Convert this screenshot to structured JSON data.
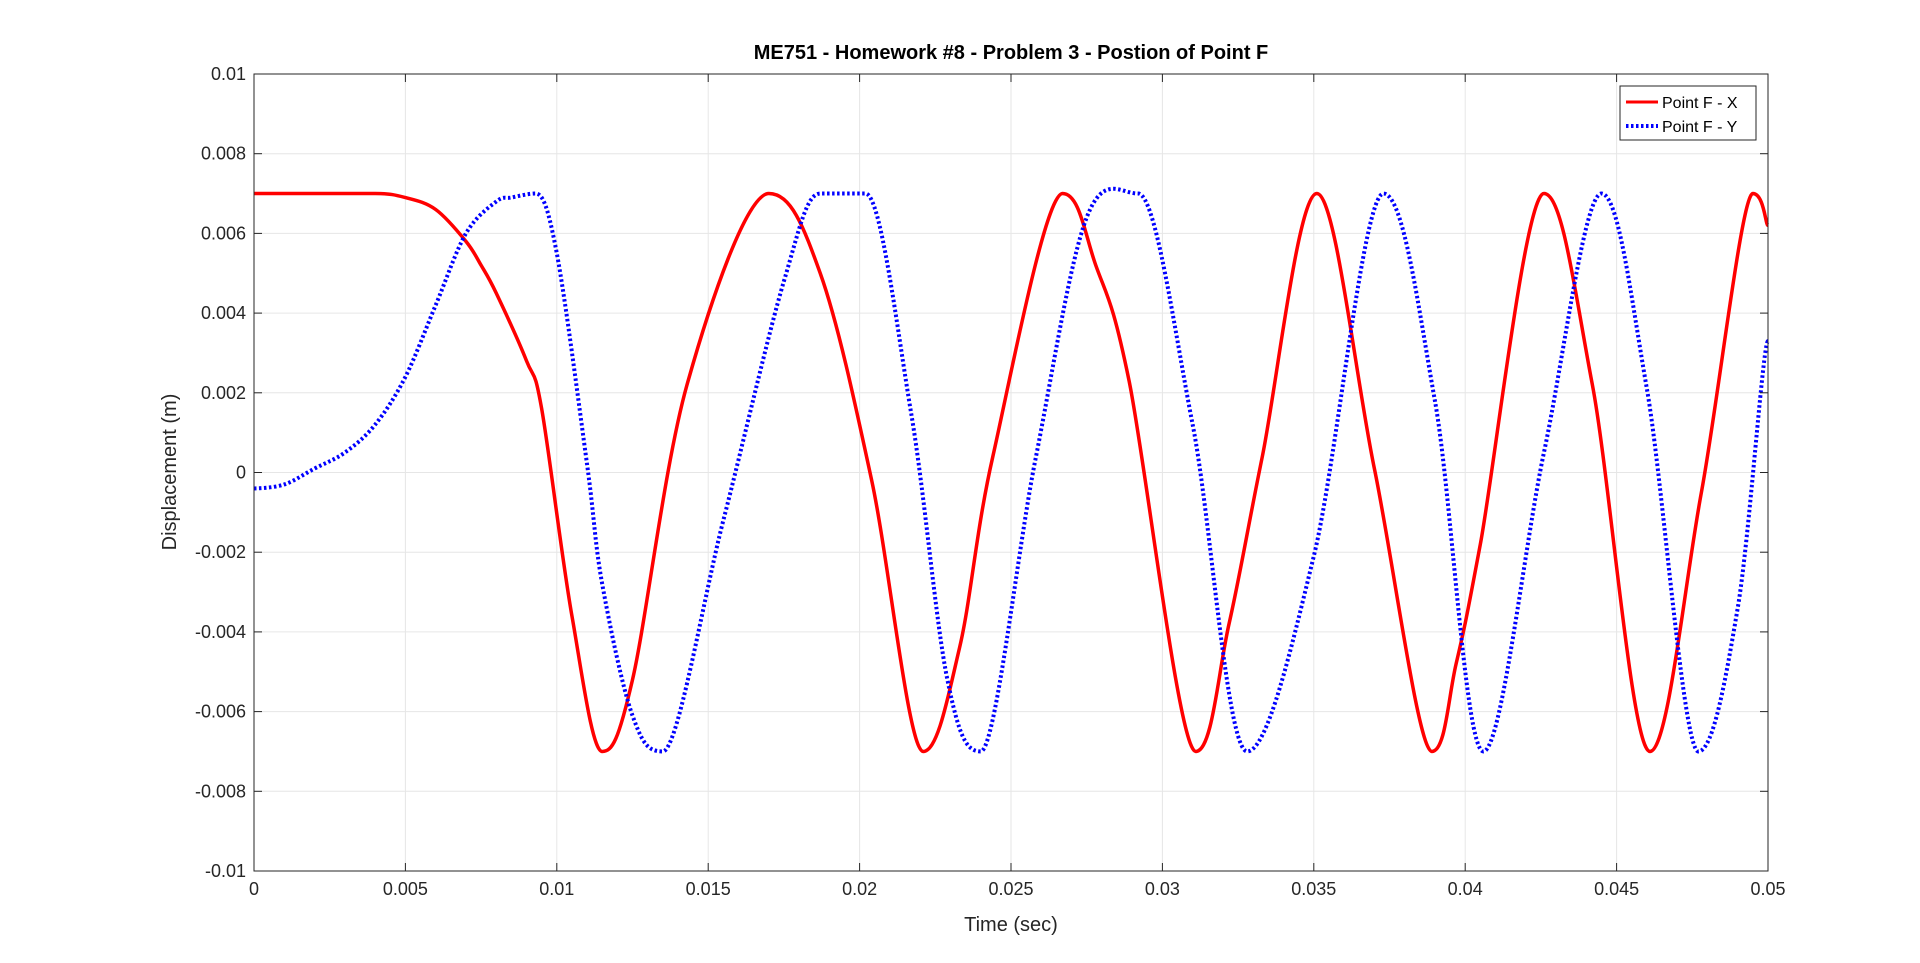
{
  "chart_data": {
    "type": "line",
    "title": "ME751 - Homework #8 - Problem 3 - Postion of Point F",
    "xlabel": "Time (sec)",
    "ylabel": "Displacement (m)",
    "xlim": [
      0,
      0.05
    ],
    "ylim": [
      -0.01,
      0.01
    ],
    "xticks": [
      0,
      0.005,
      0.01,
      0.015,
      0.02,
      0.025,
      0.03,
      0.035,
      0.04,
      0.045,
      0.05
    ],
    "xtick_labels": [
      "0",
      "0.005",
      "0.01",
      "0.015",
      "0.02",
      "0.025",
      "0.03",
      "0.035",
      "0.04",
      "0.045",
      "0.05"
    ],
    "yticks": [
      -0.01,
      -0.008,
      -0.006,
      -0.004,
      -0.002,
      0,
      0.002,
      0.004,
      0.006,
      0.008,
      0.01
    ],
    "ytick_labels": [
      "-0.01",
      "-0.008",
      "-0.006",
      "-0.004",
      "-0.002",
      "0",
      "0.002",
      "0.004",
      "0.006",
      "0.008",
      "0.01"
    ],
    "grid": true,
    "legend_position": "top-right",
    "series": [
      {
        "name": "Point F - X",
        "color": "#ff0000",
        "style": "solid",
        "x": [
          0,
          0.002,
          0.004,
          0.005,
          0.006,
          0.007,
          0.0075,
          0.008,
          0.009,
          0.0095,
          0.0105,
          0.0115,
          0.0125,
          0.0143,
          0.017,
          0.0187,
          0.0204,
          0.0221,
          0.0233,
          0.0244,
          0.0267,
          0.0278,
          0.0289,
          0.0311,
          0.0322,
          0.0333,
          0.0351,
          0.037,
          0.0389,
          0.0397,
          0.0405,
          0.0426,
          0.0442,
          0.0461,
          0.0478,
          0.0495,
          0.05
        ],
        "y": [
          0.007,
          0.007,
          0.007,
          0.0069,
          0.0066,
          0.0058,
          0.0052,
          0.0045,
          0.0028,
          0.0016,
          -0.0036,
          -0.007,
          -0.0052,
          0.0022,
          0.007,
          0.005,
          -0.0002,
          -0.007,
          -0.0044,
          0.0004,
          0.007,
          0.0052,
          0.0023,
          -0.007,
          -0.0038,
          0.0004,
          0.007,
          0.0001,
          -0.007,
          -0.0048,
          -0.0018,
          0.007,
          0.0022,
          -0.007,
          -0.0005,
          0.007,
          0.0062
        ]
      },
      {
        "name": "Point F - Y",
        "color": "#0000ff",
        "style": "dotted",
        "x": [
          0,
          0.001,
          0.002,
          0.003,
          0.004,
          0.005,
          0.006,
          0.007,
          0.008,
          0.0085,
          0.0093,
          0.01,
          0.011,
          0.0115,
          0.0125,
          0.0135,
          0.0155,
          0.0175,
          0.0187,
          0.0202,
          0.0217,
          0.0229,
          0.024,
          0.0258,
          0.0275,
          0.0292,
          0.031,
          0.0328,
          0.035,
          0.0373,
          0.039,
          0.0406,
          0.0426,
          0.0445,
          0.046,
          0.0477,
          0.049,
          0.05
        ],
        "y": [
          -0.0004,
          -0.0003,
          0.0001,
          0.0005,
          0.0012,
          0.0024,
          0.0042,
          0.006,
          0.0068,
          0.0069,
          0.007,
          0.0055,
          0.0002,
          -0.0028,
          -0.0061,
          -0.007,
          -0.0012,
          0.0048,
          0.007,
          0.007,
          0.0015,
          -0.0052,
          -0.007,
          0.0003,
          0.0064,
          0.007,
          0.0012,
          -0.007,
          -0.0021,
          0.007,
          0.0018,
          -0.007,
          0.0005,
          0.007,
          0.0021,
          -0.007,
          -0.0034,
          0.0033
        ]
      }
    ]
  }
}
